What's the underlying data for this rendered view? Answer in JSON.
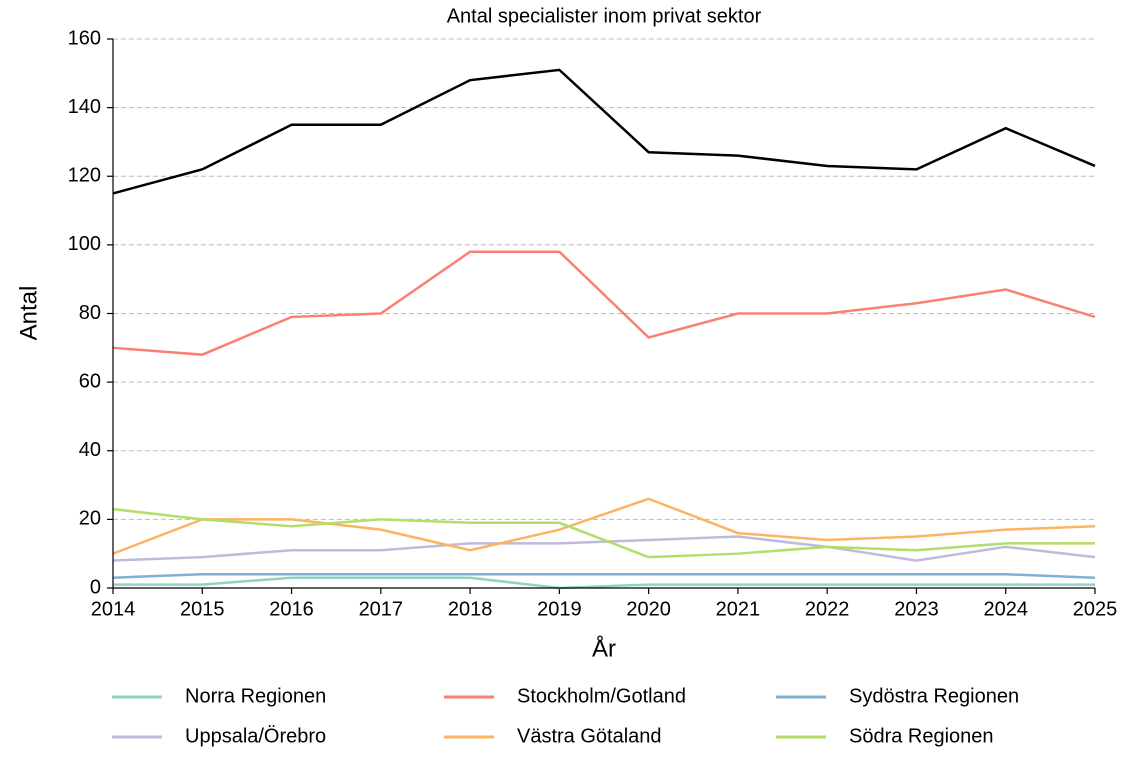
{
  "chart_data": {
    "type": "line",
    "title": "Antal specialister inom privat sektor",
    "xlabel": "År",
    "ylabel": "Antal",
    "x": [
      2014,
      2015,
      2016,
      2017,
      2018,
      2019,
      2020,
      2021,
      2022,
      2023,
      2024,
      2025
    ],
    "series": [
      {
        "name": "Norra Regionen",
        "color": "#8dd3c7",
        "values": [
          1,
          1,
          3,
          3,
          3,
          0,
          1,
          1,
          1,
          1,
          1,
          1
        ]
      },
      {
        "name": "Uppsala/Örebro",
        "color": "#bebada",
        "values": [
          8,
          9,
          11,
          11,
          13,
          13,
          14,
          15,
          12,
          8,
          12,
          9
        ]
      },
      {
        "name": "Stockholm/Gotland",
        "color": "#fb8072",
        "values": [
          70,
          68,
          79,
          80,
          98,
          98,
          73,
          80,
          80,
          83,
          87,
          79
        ]
      },
      {
        "name": "Västra Götaland",
        "color": "#fdb462",
        "values": [
          10,
          20,
          20,
          17,
          11,
          17,
          26,
          16,
          14,
          15,
          17,
          18
        ]
      },
      {
        "name": "Sydöstra Regionen",
        "color": "#80b1d3",
        "values": [
          3,
          4,
          4,
          4,
          4,
          4,
          4,
          4,
          4,
          4,
          4,
          3
        ]
      },
      {
        "name": "Södra Regionen",
        "color": "#b3de69",
        "values": [
          23,
          20,
          18,
          20,
          19,
          19,
          9,
          10,
          12,
          11,
          13,
          13
        ]
      },
      {
        "color": "#000000",
        "values": [
          115,
          122,
          135,
          135,
          148,
          151,
          127,
          126,
          123,
          122,
          134,
          123
        ]
      }
    ],
    "xlim": [
      2014,
      2025
    ],
    "xticks": [
      2014,
      2015,
      2016,
      2017,
      2018,
      2019,
      2020,
      2021,
      2022,
      2023,
      2024,
      2025
    ],
    "ylim": [
      0,
      160
    ],
    "yticks": [
      0,
      20,
      40,
      60,
      80,
      100,
      120,
      140,
      160
    ],
    "grid": true,
    "legend": "bottom"
  }
}
